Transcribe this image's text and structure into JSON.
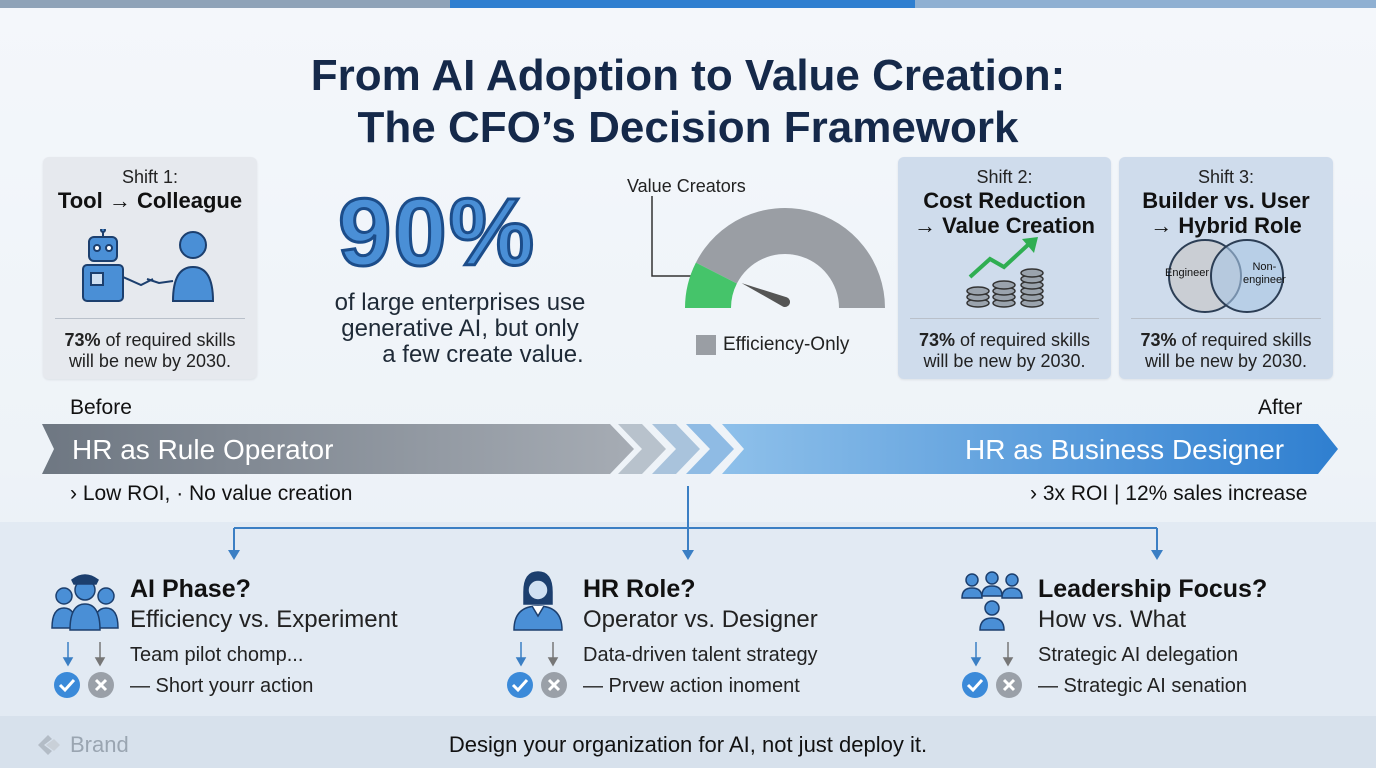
{
  "title_line1": "From AI Adoption to Value Creation:",
  "title_line2": "The CFO’s Decision Framework",
  "shift1": {
    "kicker": "Shift 1:",
    "heading": "Tool → Colleague",
    "skills_pct": "73%",
    "skills_rest1": " of required skills",
    "skills_line2": "will be new by 2030."
  },
  "shift2": {
    "kicker": "Shift 2:",
    "heading1": "Cost Reduction",
    "heading2": "→ Value Creation",
    "skills_pct": "73%",
    "skills_rest1": " of required skills",
    "skills_line2": "will be new by 2030."
  },
  "shift3": {
    "kicker": "Shift 3:",
    "heading1": "Builder vs. User",
    "heading2": "→ Hybrid Role",
    "venn_left": "Engineer",
    "venn_right1": "Non-",
    "venn_right2": "engineer",
    "skills_pct": "73%",
    "skills_rest1": " of required skills",
    "skills_line2": "will be new by 2030."
  },
  "stat": {
    "value": "90%",
    "line1": "of large enterprises use",
    "line2": "generative AI, but only",
    "line3": "a few create value."
  },
  "gauge": {
    "label": "Value Creators",
    "legend": "Efficiency-Only",
    "value_creators_share": 0.15,
    "colors": {
      "value": "#45c46a",
      "efficiency": "#9a9ea4"
    }
  },
  "before_label": "Before",
  "after_label": "After",
  "band_left": "HR as Rule Operator",
  "band_right": "HR as Business Designer",
  "outcome_left": "› Low ROI, · No value creation",
  "outcome_right": "› 3x ROI | 12% sales increase",
  "questions": [
    {
      "title": "AI Phase?",
      "sub": "Efficiency vs. Experiment",
      "line1": "Team pilot chomp...",
      "line2": "— Short yourr action",
      "icon": "pilot-team-icon"
    },
    {
      "title": "HR Role?",
      "sub": "Operator vs. Designer",
      "line1": "Data-driven talent strategy",
      "line2": "— Prvew action inoment",
      "icon": "hr-person-icon"
    },
    {
      "title": "Leadership Focus?",
      "sub": "How vs. What",
      "line1": "Strategic AI delegation",
      "line2": "— Strategic AI senation",
      "icon": "leadership-group-icon"
    }
  ],
  "brand": "Brand",
  "tagline": "Design your organization for AI, not just deploy it.",
  "colors": {
    "accent": "#2f7fd0",
    "navy": "#15294a",
    "check": "#3b8ad9",
    "cross": "#9aa0a8"
  }
}
